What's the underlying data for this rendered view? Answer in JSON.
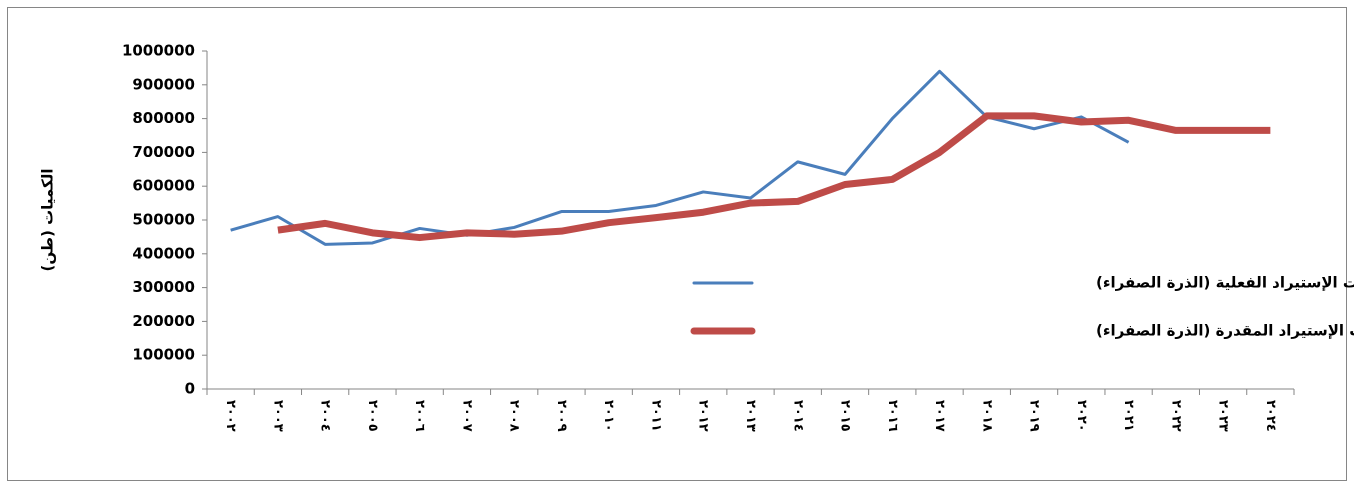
{
  "chart_data": {
    "type": "line",
    "y_label": "الكميات (طن)",
    "categories": [
      "٢٠٠٢",
      "٢٠٠٣",
      "٢٠٠٤",
      "٢٠٠٥",
      "٢٠٠٦",
      "٢٠٠٧",
      "٢٠٠٨",
      "٢٠٠٩",
      "٢٠١٠",
      "٢٠١١",
      "٢٠١٢",
      "٢٠١٣",
      "٢٠١٤",
      "٢٠١٥",
      "٢٠١٦",
      "٢٠١٧",
      "٢٠١٨",
      "٢٠١٩",
      "٢٠٢٠",
      "٢٠٢١",
      "٢٠٢٢",
      "٢٠٢٣",
      "٢٠٢٤"
    ],
    "series": [
      {
        "name": "كميات الإستيراد الفعلية (الذرة الصفراء)",
        "color": "#4a7ebb",
        "width": 3,
        "values": [
          470000,
          510000,
          428000,
          432000,
          475000,
          455000,
          478000,
          525000,
          525000,
          543000,
          583000,
          565000,
          672000,
          635000,
          800000,
          940000,
          805000,
          770000,
          805000,
          730000,
          null,
          null,
          null
        ]
      },
      {
        "name": "الكميات الإستيراد المقدرة (الذرة الصفراء)",
        "color": "#be4b48",
        "width": 7,
        "values": [
          null,
          470000,
          490000,
          462000,
          448000,
          462000,
          458000,
          467000,
          492000,
          507000,
          523000,
          550000,
          555000,
          605000,
          620000,
          700000,
          808000,
          808000,
          790000,
          795000,
          765000,
          765000,
          765000
        ]
      }
    ],
    "ylim": [
      0,
      1000000
    ],
    "yticks": [
      0,
      100000,
      200000,
      300000,
      400000,
      500000,
      600000,
      700000,
      800000,
      900000,
      1000000
    ]
  }
}
